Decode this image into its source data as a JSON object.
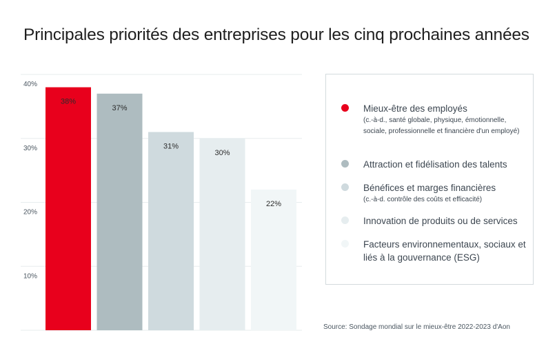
{
  "chart_data": {
    "type": "bar",
    "title": "Principales priorités des entreprises pour les cinq prochaines années",
    "categories": [
      "Mieux-être des employés",
      "Attraction et fidélisation des talents",
      "Bénéfices et marges financières",
      "Innovation de produits ou de services",
      "Facteurs environnementaux, sociaux et liés à la gouvernance (ESG)"
    ],
    "values": [
      38,
      37,
      31,
      30,
      22
    ],
    "value_labels": [
      "38%",
      "37%",
      "31%",
      "30%",
      "22%"
    ],
    "colors": [
      "#e8001c",
      "#aebcc0",
      "#cfdade",
      "#e6edef",
      "#f1f6f7"
    ],
    "ylim": [
      0,
      40
    ],
    "yticks": [
      10,
      20,
      30,
      40
    ],
    "ytick_labels": [
      "10%",
      "20%",
      "30%",
      "40%"
    ],
    "grid": true,
    "xlabel": "",
    "ylabel": "",
    "legend_position": "right"
  },
  "legend": {
    "items": [
      {
        "label": "Mieux-être des employés",
        "sub": "(c.-à-d., santé globale, physique, émotionnelle, sociale, professionnelle et financière d'un employé)",
        "color": "#e8001c"
      },
      {
        "label": "Attraction et fidélisation des talents",
        "sub": "",
        "color": "#aebcc0"
      },
      {
        "label": "Bénéfices et marges financières",
        "sub": "(c.-à-d. contrôle des coûts et efficacité)",
        "color": "#cfdade"
      },
      {
        "label": "Innovation de produits ou de services",
        "sub": "",
        "color": "#e6edef"
      },
      {
        "label": "Facteurs environnementaux, sociaux et liés à la gouvernance (ESG)",
        "sub": "",
        "color": "#f1f6f7"
      }
    ]
  },
  "source": "Source: Sondage mondial sur le mieux-être 2022-2023 d'Aon"
}
